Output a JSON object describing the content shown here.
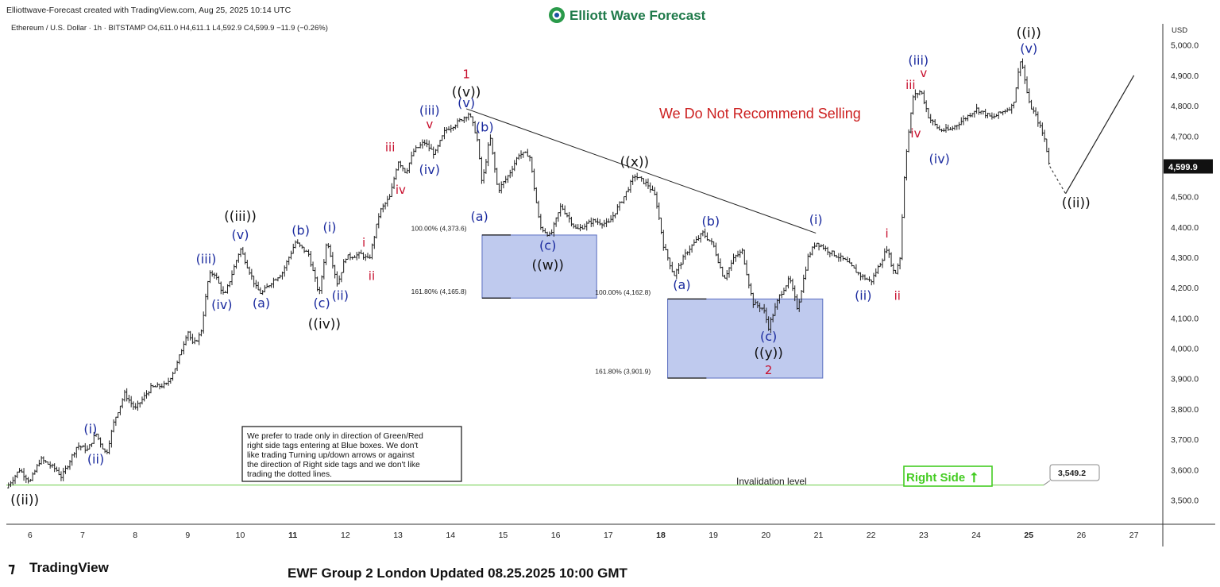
{
  "header": {
    "created_by": "Elliottwave-Forecast created with TradingView.com, Aug 25, 2025 10:14 UTC",
    "logo_text": "Elliott Wave Forecast",
    "symbol_line": "Ethereum / U.S. Dollar · 1h · BITSTAMP  O4,611.0  H4,611.1  L4,592.9  C4,599.9  −11.9 (−0.26%)"
  },
  "footer": {
    "tradingview_logo": "TradingView",
    "update_text": "EWF Group 2 London Updated 08.25.2025 10:00 GMT"
  },
  "colors": {
    "candle": "#1e1e1e",
    "blue_label": "#1a2a9e",
    "red_label": "#c8102e",
    "black_label": "#111111",
    "box_fill": "#aab8e8",
    "box_stroke": "#5a6ec0",
    "right_side": "#44cc22",
    "invalidation": "#7bd35a"
  },
  "chart_data": {
    "type": "candlestick",
    "symbol": "Ethereum / U.S. Dollar",
    "timeframe": "1h",
    "exchange": "BITSTAMP",
    "ohlc": {
      "open": 4611.0,
      "high": 4611.1,
      "low": 4592.9,
      "close": 4599.9,
      "change": "−11.9 (−0.26%)"
    },
    "price_unit": "USD",
    "ylim": [
      3420,
      5070
    ],
    "xlim": [
      5.55,
      27.55
    ],
    "y_ticks": [
      "3,500.0",
      "3,600.0",
      "3,700.0",
      "3,800.0",
      "3,900.0",
      "4,000.0",
      "4,100.0",
      "4,200.0",
      "4,300.0",
      "4,400.0",
      "4,500.0",
      "4,600.0",
      "4,700.0",
      "4,800.0",
      "4,900.0",
      "5,000.0"
    ],
    "y_tick_values": [
      3500,
      3600,
      3700,
      3800,
      3900,
      4000,
      4100,
      4200,
      4300,
      4400,
      4500,
      4600,
      4700,
      4800,
      4900,
      5000
    ],
    "x_ticks": [
      "6",
      "7",
      "8",
      "9",
      "10",
      "11",
      "12",
      "13",
      "14",
      "15",
      "16",
      "17",
      "18",
      "19",
      "20",
      "21",
      "22",
      "23",
      "24",
      "25",
      "26",
      "27"
    ],
    "x_tick_values": [
      6,
      7,
      8,
      9,
      10,
      11,
      12,
      13,
      14,
      15,
      16,
      17,
      18,
      19,
      20,
      21,
      22,
      23,
      24,
      25,
      26,
      27
    ],
    "bold_x_ticks": [
      "11",
      "18",
      "25"
    ],
    "last_price": {
      "label": "4,599.9",
      "value": 4599.9
    },
    "price_path": [
      {
        "t": 5.55,
        "p": 3540
      },
      {
        "t": 5.8,
        "p": 3600
      },
      {
        "t": 6.0,
        "p": 3560
      },
      {
        "t": 6.2,
        "p": 3635
      },
      {
        "t": 6.5,
        "p": 3600
      },
      {
        "t": 6.6,
        "p": 3575
      },
      {
        "t": 6.9,
        "p": 3680
      },
      {
        "t": 7.1,
        "p": 3665
      },
      {
        "t": 7.25,
        "p": 3720
      },
      {
        "t": 7.45,
        "p": 3650
      },
      {
        "t": 7.6,
        "p": 3760
      },
      {
        "t": 7.8,
        "p": 3850
      },
      {
        "t": 8.0,
        "p": 3800
      },
      {
        "t": 8.3,
        "p": 3870
      },
      {
        "t": 8.6,
        "p": 3880
      },
      {
        "t": 8.8,
        "p": 3950
      },
      {
        "t": 9.0,
        "p": 4060
      },
      {
        "t": 9.1,
        "p": 4010
      },
      {
        "t": 9.25,
        "p": 4050
      },
      {
        "t": 9.4,
        "p": 4240
      },
      {
        "t": 9.5,
        "p": 4250
      },
      {
        "t": 9.7,
        "p": 4170
      },
      {
        "t": 10.0,
        "p": 4330
      },
      {
        "t": 10.3,
        "p": 4200
      },
      {
        "t": 10.4,
        "p": 4180
      },
      {
        "t": 10.6,
        "p": 4220
      },
      {
        "t": 10.8,
        "p": 4250
      },
      {
        "t": 11.05,
        "p": 4350
      },
      {
        "t": 11.3,
        "p": 4310
      },
      {
        "t": 11.5,
        "p": 4175
      },
      {
        "t": 11.65,
        "p": 4360
      },
      {
        "t": 11.85,
        "p": 4210
      },
      {
        "t": 12.0,
        "p": 4300
      },
      {
        "t": 12.3,
        "p": 4310
      },
      {
        "t": 12.45,
        "p": 4290
      },
      {
        "t": 12.65,
        "p": 4450
      },
      {
        "t": 12.85,
        "p": 4500
      },
      {
        "t": 13.0,
        "p": 4620
      },
      {
        "t": 13.15,
        "p": 4580
      },
      {
        "t": 13.3,
        "p": 4650
      },
      {
        "t": 13.5,
        "p": 4680
      },
      {
        "t": 13.7,
        "p": 4640
      },
      {
        "t": 13.9,
        "p": 4720
      },
      {
        "t": 14.1,
        "p": 4740
      },
      {
        "t": 14.35,
        "p": 4775
      },
      {
        "t": 14.5,
        "p": 4700
      },
      {
        "t": 14.6,
        "p": 4540
      },
      {
        "t": 14.75,
        "p": 4700
      },
      {
        "t": 14.9,
        "p": 4520
      },
      {
        "t": 15.1,
        "p": 4570
      },
      {
        "t": 15.3,
        "p": 4640
      },
      {
        "t": 15.5,
        "p": 4640
      },
      {
        "t": 15.7,
        "p": 4400
      },
      {
        "t": 15.9,
        "p": 4370
      },
      {
        "t": 16.1,
        "p": 4470
      },
      {
        "t": 16.4,
        "p": 4390
      },
      {
        "t": 16.7,
        "p": 4420
      },
      {
        "t": 17.0,
        "p": 4410
      },
      {
        "t": 17.3,
        "p": 4500
      },
      {
        "t": 17.5,
        "p": 4570
      },
      {
        "t": 17.75,
        "p": 4540
      },
      {
        "t": 17.9,
        "p": 4500
      },
      {
        "t": 18.05,
        "p": 4340
      },
      {
        "t": 18.25,
        "p": 4240
      },
      {
        "t": 18.5,
        "p": 4320
      },
      {
        "t": 18.8,
        "p": 4380
      },
      {
        "t": 19.0,
        "p": 4340
      },
      {
        "t": 19.2,
        "p": 4230
      },
      {
        "t": 19.4,
        "p": 4300
      },
      {
        "t": 19.55,
        "p": 4320
      },
      {
        "t": 19.75,
        "p": 4150
      },
      {
        "t": 19.95,
        "p": 4130
      },
      {
        "t": 20.05,
        "p": 4070
      },
      {
        "t": 20.25,
        "p": 4170
      },
      {
        "t": 20.45,
        "p": 4230
      },
      {
        "t": 20.6,
        "p": 4130
      },
      {
        "t": 20.8,
        "p": 4300
      },
      {
        "t": 20.95,
        "p": 4350
      },
      {
        "t": 21.2,
        "p": 4320
      },
      {
        "t": 21.5,
        "p": 4290
      },
      {
        "t": 21.8,
        "p": 4240
      },
      {
        "t": 22.0,
        "p": 4220
      },
      {
        "t": 22.2,
        "p": 4290
      },
      {
        "t": 22.3,
        "p": 4330
      },
      {
        "t": 22.45,
        "p": 4240
      },
      {
        "t": 22.55,
        "p": 4300
      },
      {
        "t": 22.65,
        "p": 4620
      },
      {
        "t": 22.8,
        "p": 4830
      },
      {
        "t": 22.95,
        "p": 4850
      },
      {
        "t": 23.1,
        "p": 4760
      },
      {
        "t": 23.3,
        "p": 4720
      },
      {
        "t": 23.5,
        "p": 4720
      },
      {
        "t": 23.8,
        "p": 4760
      },
      {
        "t": 24.0,
        "p": 4790
      },
      {
        "t": 24.3,
        "p": 4760
      },
      {
        "t": 24.5,
        "p": 4780
      },
      {
        "t": 24.7,
        "p": 4800
      },
      {
        "t": 24.85,
        "p": 4960
      },
      {
        "t": 25.0,
        "p": 4810
      },
      {
        "t": 25.15,
        "p": 4760
      },
      {
        "t": 25.3,
        "p": 4690
      },
      {
        "t": 25.4,
        "p": 4600
      }
    ],
    "trendline": {
      "from": {
        "t": 14.3,
        "p": 4790
      },
      "to": {
        "t": 20.95,
        "p": 4380
      }
    },
    "projection_solid": {
      "from": {
        "t": 25.7,
        "p": 4510
      },
      "to": {
        "t": 27.0,
        "p": 4900
      }
    },
    "projection_dashed": {
      "from": {
        "t": 25.4,
        "p": 4600
      },
      "to": {
        "t": 25.7,
        "p": 4510
      }
    },
    "blue_boxes": [
      {
        "t0": 14.6,
        "t1": 16.78,
        "p_top": 4373.6,
        "p_bottom": 4165.8
      },
      {
        "t0": 18.13,
        "t1": 21.08,
        "p_top": 4162.8,
        "p_bottom": 3901.9
      }
    ],
    "fib_labels": [
      {
        "text": "100.00% (4,373.6)",
        "t": 14.55,
        "p": 4388
      },
      {
        "text": "161.80% (4,165.8)",
        "t": 14.55,
        "p": 4180
      },
      {
        "text": "100.00% (4,162.8)",
        "t": 18.05,
        "p": 4177
      },
      {
        "text": "161.80% (3,901.9)",
        "t": 18.05,
        "p": 3916
      }
    ],
    "invalidation": {
      "text": "Invalidation level",
      "value": 3549.2,
      "value_label": "3,549.2"
    },
    "wave_labels": [
      {
        "text": "((ii))",
        "t": 5.9,
        "p": 3485,
        "color": "black"
      },
      {
        "text": "(i)",
        "t": 7.15,
        "p": 3720,
        "color": "blue"
      },
      {
        "text": "(ii)",
        "t": 7.25,
        "p": 3620,
        "color": "blue"
      },
      {
        "text": "(iii)",
        "t": 9.35,
        "p": 4280,
        "color": "blue"
      },
      {
        "text": "(iv)",
        "t": 9.65,
        "p": 4130,
        "color": "blue"
      },
      {
        "text": "(v)",
        "t": 10.0,
        "p": 4360,
        "color": "blue"
      },
      {
        "text": "((iii))",
        "t": 10.0,
        "p": 4420,
        "color": "black"
      },
      {
        "text": "(a)",
        "t": 10.4,
        "p": 4135,
        "color": "blue"
      },
      {
        "text": "(b)",
        "t": 11.15,
        "p": 4375,
        "color": "blue"
      },
      {
        "text": "(c)",
        "t": 11.55,
        "p": 4135,
        "color": "blue"
      },
      {
        "text": "((iv))",
        "t": 11.6,
        "p": 4065,
        "color": "black"
      },
      {
        "text": "(i)",
        "t": 11.7,
        "p": 4385,
        "color": "blue"
      },
      {
        "text": "(ii)",
        "t": 11.9,
        "p": 4160,
        "color": "blue"
      },
      {
        "text": "i",
        "t": 12.35,
        "p": 4335,
        "color": "red"
      },
      {
        "text": "ii",
        "t": 12.5,
        "p": 4225,
        "color": "red"
      },
      {
        "text": "iii",
        "t": 12.85,
        "p": 4650,
        "color": "red"
      },
      {
        "text": "iv",
        "t": 13.05,
        "p": 4510,
        "color": "red"
      },
      {
        "text": "(iii)",
        "t": 13.6,
        "p": 4770,
        "color": "blue"
      },
      {
        "text": "v",
        "t": 13.6,
        "p": 4725,
        "color": "red"
      },
      {
        "text": "(iv)",
        "t": 13.6,
        "p": 4575,
        "color": "blue"
      },
      {
        "text": "1",
        "t": 14.3,
        "p": 4890,
        "color": "red"
      },
      {
        "text": "((v))",
        "t": 14.3,
        "p": 4830,
        "color": "black"
      },
      {
        "text": "(v)",
        "t": 14.3,
        "p": 4795,
        "color": "blue"
      },
      {
        "text": "(b)",
        "t": 14.65,
        "p": 4715,
        "color": "blue"
      },
      {
        "text": "(a)",
        "t": 14.55,
        "p": 4420,
        "color": "blue"
      },
      {
        "text": "(c)",
        "t": 15.85,
        "p": 4325,
        "color": "blue"
      },
      {
        "text": "((w))",
        "t": 15.85,
        "p": 4260,
        "color": "black"
      },
      {
        "text": "((x))",
        "t": 17.5,
        "p": 4600,
        "color": "black"
      },
      {
        "text": "(a)",
        "t": 18.4,
        "p": 4195,
        "color": "blue"
      },
      {
        "text": "(b)",
        "t": 18.95,
        "p": 4405,
        "color": "blue"
      },
      {
        "text": "(c)",
        "t": 20.05,
        "p": 4025,
        "color": "blue"
      },
      {
        "text": "((y))",
        "t": 20.05,
        "p": 3970,
        "color": "black"
      },
      {
        "text": "2",
        "t": 20.05,
        "p": 3915,
        "color": "red"
      },
      {
        "text": "(i)",
        "t": 20.95,
        "p": 4410,
        "color": "blue"
      },
      {
        "text": "(ii)",
        "t": 21.85,
        "p": 4160,
        "color": "blue"
      },
      {
        "text": "i",
        "t": 22.3,
        "p": 4365,
        "color": "red"
      },
      {
        "text": "ii",
        "t": 22.5,
        "p": 4160,
        "color": "red"
      },
      {
        "text": "(iii)",
        "t": 22.9,
        "p": 4935,
        "color": "blue"
      },
      {
        "text": "v",
        "t": 23.0,
        "p": 4895,
        "color": "red"
      },
      {
        "text": "iii",
        "t": 22.75,
        "p": 4855,
        "color": "red"
      },
      {
        "text": "iv",
        "t": 22.85,
        "p": 4695,
        "color": "red"
      },
      {
        "text": "(iv)",
        "t": 23.3,
        "p": 4610,
        "color": "blue"
      },
      {
        "text": "((i))",
        "t": 25.0,
        "p": 5025,
        "color": "black"
      },
      {
        "text": "(v)",
        "t": 25.0,
        "p": 4975,
        "color": "blue"
      },
      {
        "text": "((ii))",
        "t": 25.9,
        "p": 4465,
        "color": "black"
      }
    ]
  },
  "annotations": {
    "headline": "We Do Not Recommend Selling",
    "note_lines": [
      "We prefer to trade only in direction of Green/Red",
      "right side tags entering at Blue boxes. We don't",
      "like trading Turning up/down arrows or against",
      "the direction of Right side tags and we don't like",
      "trading the dotted lines."
    ],
    "right_side_tag": "Right Side",
    "right_side_arrow": "⭡"
  }
}
